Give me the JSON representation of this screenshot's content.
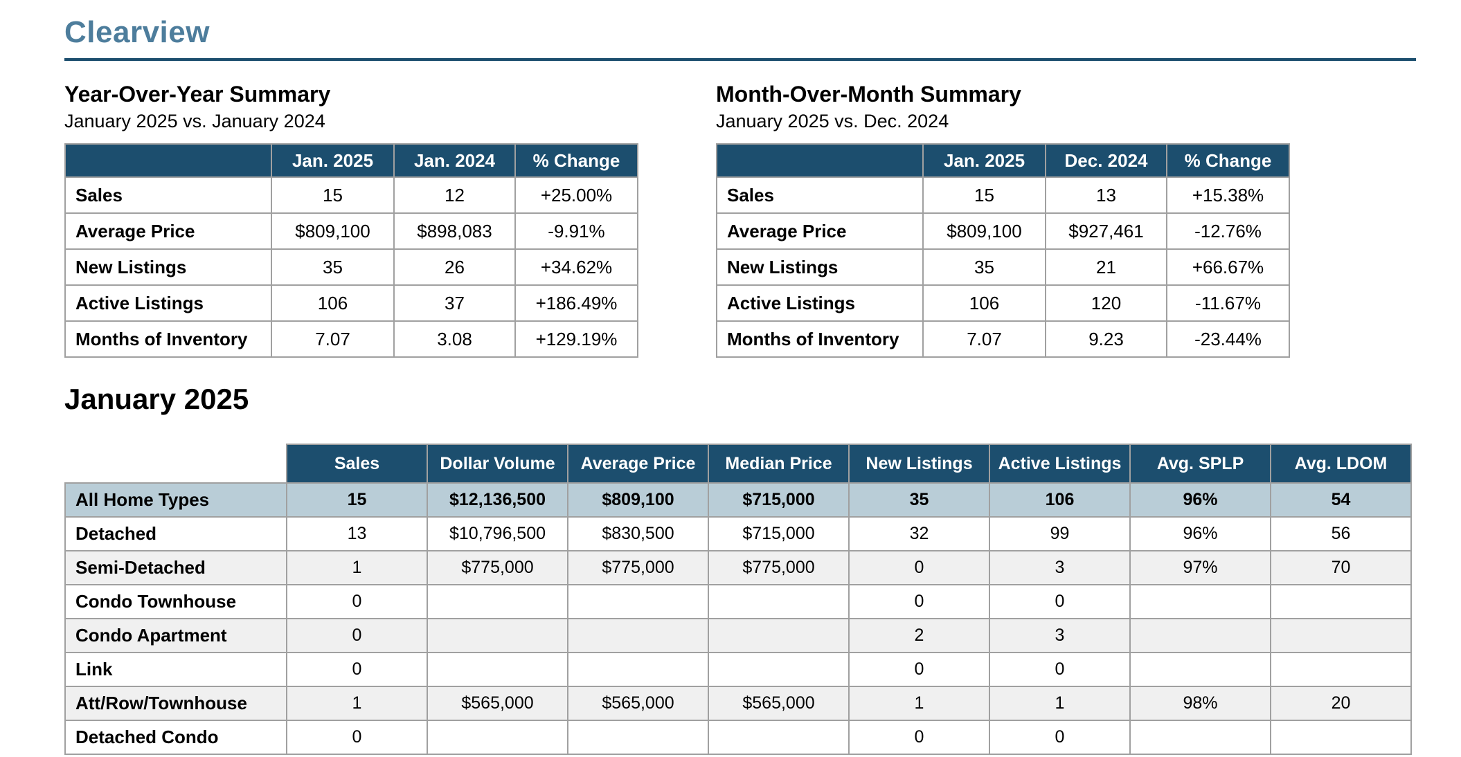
{
  "header": {
    "title": "Clearview"
  },
  "yoy": {
    "heading": "Year-Over-Year Summary",
    "subtitle": "January 2025 vs. January 2024",
    "columns": [
      "Jan. 2025",
      "Jan. 2024",
      "% Change"
    ],
    "rows": [
      {
        "label": "Sales",
        "values": [
          "15",
          "12",
          "+25.00%"
        ]
      },
      {
        "label": "Average Price",
        "values": [
          "$809,100",
          "$898,083",
          "-9.91%"
        ]
      },
      {
        "label": "New Listings",
        "values": [
          "35",
          "26",
          "+34.62%"
        ]
      },
      {
        "label": "Active Listings",
        "values": [
          "106",
          "37",
          "+186.49%"
        ]
      },
      {
        "label": "Months of Inventory",
        "values": [
          "7.07",
          "3.08",
          "+129.19%"
        ]
      }
    ]
  },
  "mom": {
    "heading": "Month-Over-Month Summary",
    "subtitle": "January 2025 vs. Dec. 2024",
    "columns": [
      "Jan. 2025",
      "Dec. 2024",
      "% Change"
    ],
    "rows": [
      {
        "label": "Sales",
        "values": [
          "15",
          "13",
          "+15.38%"
        ]
      },
      {
        "label": "Average Price",
        "values": [
          "$809,100",
          "$927,461",
          "-12.76%"
        ]
      },
      {
        "label": "New Listings",
        "values": [
          "35",
          "21",
          "+66.67%"
        ]
      },
      {
        "label": "Active Listings",
        "values": [
          "106",
          "120",
          "-11.67%"
        ]
      },
      {
        "label": "Months of Inventory",
        "values": [
          "7.07",
          "9.23",
          "-23.44%"
        ]
      }
    ]
  },
  "monthly": {
    "heading": "January 2025",
    "columns": [
      "Sales",
      "Dollar Volume",
      "Average Price",
      "Median Price",
      "New Listings",
      "Active Listings",
      "Avg. SPLP",
      "Avg. LDOM"
    ],
    "rows": [
      {
        "label": "All Home Types",
        "highlight": true,
        "values": [
          "15",
          "$12,136,500",
          "$809,100",
          "$715,000",
          "35",
          "106",
          "96%",
          "54"
        ]
      },
      {
        "label": "Detached",
        "values": [
          "13",
          "$10,796,500",
          "$830,500",
          "$715,000",
          "32",
          "99",
          "96%",
          "56"
        ]
      },
      {
        "label": "Semi-Detached",
        "values": [
          "1",
          "$775,000",
          "$775,000",
          "$775,000",
          "0",
          "3",
          "97%",
          "70"
        ]
      },
      {
        "label": "Condo Townhouse",
        "values": [
          "0",
          "",
          "",
          "",
          "0",
          "0",
          "",
          ""
        ]
      },
      {
        "label": "Condo Apartment",
        "values": [
          "0",
          "",
          "",
          "",
          "2",
          "3",
          "",
          ""
        ]
      },
      {
        "label": "Link",
        "values": [
          "0",
          "",
          "",
          "",
          "0",
          "0",
          "",
          ""
        ]
      },
      {
        "label": "Att/Row/Townhouse",
        "values": [
          "1",
          "$565,000",
          "$565,000",
          "$565,000",
          "1",
          "1",
          "98%",
          "20"
        ]
      },
      {
        "label": "Detached Condo",
        "values": [
          "0",
          "",
          "",
          "",
          "0",
          "0",
          "",
          ""
        ]
      }
    ]
  },
  "colors": {
    "header_bg": "#1C4E6E",
    "title": "#4D7D9C",
    "rule": "#1C4E6E",
    "highlight_row": "#B9CDD7",
    "alt_row": "#F0F0F0",
    "border": "#A0A0A0"
  }
}
